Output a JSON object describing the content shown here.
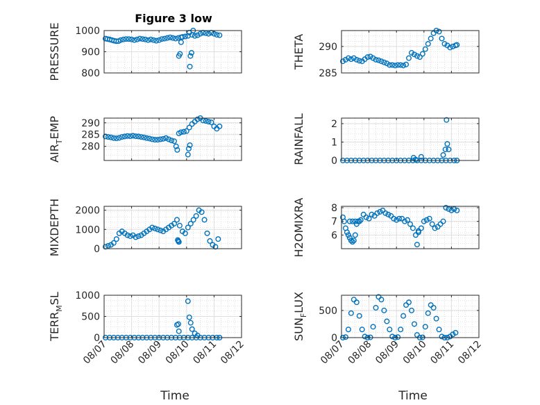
{
  "chart_data": {
    "type": "scatter",
    "title": "Figure 3 low",
    "marker": "open-circle",
    "marker_color": "#0072BD",
    "grid": "major and minor, dotted",
    "x_axis": {
      "label": "Time",
      "range": [
        "08/07",
        "08/12"
      ],
      "tick_labels": [
        "08/07",
        "08/08",
        "08/09",
        "08/10",
        "08/11",
        "08/12"
      ]
    },
    "panels": [
      {
        "id": "pressure",
        "ylabel": "PRESSURE",
        "ylim": [
          800,
          1000
        ],
        "yticks": [
          "800",
          "900",
          "1000"
        ],
        "x": [
          0.05,
          0.12,
          0.2,
          0.28,
          0.36,
          0.44,
          0.52,
          0.6,
          0.7,
          0.8,
          0.9,
          1.0,
          1.1,
          1.2,
          1.3,
          1.4,
          1.5,
          1.6,
          1.7,
          1.8,
          1.9,
          2.0,
          2.1,
          2.2,
          2.3,
          2.4,
          2.5,
          2.6,
          2.7,
          2.8,
          2.85,
          2.95,
          3.05,
          3.1,
          3.2,
          3.3,
          3.4,
          3.5,
          3.6,
          3.7,
          3.8,
          3.9,
          4.0,
          4.1,
          4.2,
          2.72,
          2.76,
          2.8,
          3.12,
          3.14,
          3.18,
          3.24
        ],
        "y": [
          962,
          960,
          958,
          955,
          952,
          950,
          950,
          955,
          958,
          960,
          960,
          958,
          955,
          958,
          962,
          960,
          958,
          955,
          958,
          955,
          952,
          955,
          960,
          962,
          965,
          968,
          965,
          962,
          965,
          968,
          970,
          972,
          975,
          990,
          980,
          975,
          978,
          985,
          990,
          988,
          985,
          990,
          985,
          980,
          978,
          880,
          890,
          945,
          830,
          880,
          895,
          1000
        ]
      },
      {
        "id": "theta",
        "ylabel": "THETA",
        "ylim": [
          285,
          293
        ],
        "yticks": [
          "285",
          "290"
        ],
        "x": [
          0.05,
          0.15,
          0.25,
          0.35,
          0.45,
          0.55,
          0.65,
          0.75,
          0.85,
          0.95,
          1.05,
          1.15,
          1.25,
          1.35,
          1.45,
          1.55,
          1.65,
          1.75,
          1.85,
          1.95,
          2.05,
          2.15,
          2.25,
          2.35,
          2.45,
          2.55,
          2.65,
          2.75,
          2.85,
          2.95,
          3.05,
          3.15,
          3.25,
          3.35,
          3.45,
          3.55,
          3.65,
          3.75,
          3.85,
          3.95,
          4.05,
          4.15,
          4.2
        ],
        "y": [
          287.2,
          287.5,
          287.8,
          287.6,
          287.8,
          287.5,
          287.3,
          287.2,
          287.6,
          288.0,
          288.1,
          287.8,
          287.5,
          287.4,
          287.2,
          287.0,
          286.8,
          286.5,
          286.5,
          286.4,
          286.5,
          286.5,
          286.4,
          286.6,
          287.8,
          288.8,
          288.5,
          288.2,
          288.0,
          288.6,
          289.5,
          290.5,
          291.5,
          292.5,
          293.0,
          292.8,
          291.5,
          290.5,
          290.2,
          289.8,
          290.0,
          290.2,
          290.3
        ]
      },
      {
        "id": "air_temp",
        "ylabel": "AIR_TEMP",
        "ylim": [
          274,
          292
        ],
        "yticks": [
          "280",
          "285",
          "290"
        ],
        "x": [
          0.05,
          0.15,
          0.25,
          0.35,
          0.45,
          0.55,
          0.65,
          0.75,
          0.85,
          0.95,
          1.05,
          1.15,
          1.25,
          1.35,
          1.45,
          1.55,
          1.65,
          1.75,
          1.85,
          1.95,
          2.05,
          2.15,
          2.25,
          2.35,
          2.45,
          2.55,
          2.62,
          2.66,
          2.72,
          2.8,
          2.9,
          3.0,
          3.1,
          3.2,
          3.3,
          3.4,
          3.5,
          3.6,
          3.7,
          3.8,
          3.9,
          4.0,
          4.1,
          4.2,
          3.05,
          3.08,
          3.12
        ],
        "y": [
          284.2,
          284.0,
          283.8,
          283.5,
          283.4,
          283.6,
          284.0,
          284.2,
          284.4,
          284.3,
          284.5,
          284.3,
          284.2,
          284.0,
          283.8,
          283.5,
          283.3,
          283.0,
          282.8,
          282.8,
          283.0,
          283.2,
          283.5,
          283.0,
          282.5,
          282.2,
          280.0,
          278.5,
          285.5,
          286.0,
          286.2,
          286.5,
          288.0,
          289.5,
          290.5,
          291.5,
          292.0,
          291.0,
          290.8,
          290.5,
          290.2,
          288.5,
          287.5,
          288.5,
          276.5,
          279.0,
          280.5
        ]
      },
      {
        "id": "rainfall",
        "ylabel": "RAINFALL",
        "ylim": [
          0,
          2.3
        ],
        "yticks": [
          "0",
          "1",
          "2"
        ],
        "x": [
          0.05,
          0.2,
          0.35,
          0.5,
          0.65,
          0.8,
          0.95,
          1.1,
          1.25,
          1.4,
          1.55,
          1.7,
          1.85,
          2.0,
          2.15,
          2.3,
          2.45,
          2.6,
          2.75,
          2.9,
          3.05,
          3.2,
          3.35,
          3.5,
          3.65,
          3.8,
          3.95,
          4.1,
          4.2,
          2.62,
          2.7,
          2.9,
          3.7,
          3.78,
          3.85,
          3.9,
          3.82
        ],
        "y": [
          0,
          0,
          0,
          0,
          0,
          0,
          0,
          0,
          0,
          0,
          0,
          0,
          0,
          0,
          0,
          0,
          0,
          0,
          0,
          0,
          0,
          0,
          0,
          0,
          0,
          0,
          0,
          0,
          0,
          0.15,
          0.05,
          0.2,
          0.3,
          0.6,
          0.9,
          0.6,
          2.2
        ]
      },
      {
        "id": "mixdepth",
        "ylabel": "MIXDEPTH",
        "ylim": [
          0,
          2200
        ],
        "yticks": [
          "0",
          "1000",
          "2000"
        ],
        "x": [
          0.05,
          0.15,
          0.25,
          0.35,
          0.45,
          0.55,
          0.65,
          0.75,
          0.85,
          0.95,
          1.05,
          1.15,
          1.25,
          1.35,
          1.45,
          1.55,
          1.65,
          1.75,
          1.85,
          1.95,
          2.05,
          2.15,
          2.25,
          2.35,
          2.45,
          2.55,
          2.65,
          2.75,
          2.85,
          2.95,
          3.05,
          3.15,
          3.25,
          3.35,
          3.45,
          3.55,
          3.65,
          3.75,
          3.85,
          3.95,
          4.05,
          4.15,
          2.7,
          2.72,
          2.68
        ],
        "y": [
          100,
          150,
          200,
          300,
          500,
          800,
          900,
          800,
          700,
          650,
          700,
          600,
          650,
          700,
          800,
          900,
          1000,
          1100,
          1050,
          1000,
          950,
          900,
          1000,
          1100,
          1200,
          1300,
          1500,
          1200,
          900,
          800,
          1100,
          1300,
          1500,
          1700,
          2000,
          1900,
          1500,
          800,
          400,
          200,
          100,
          500,
          400,
          350,
          450
        ]
      },
      {
        "id": "h2omixra",
        "ylabel": "H2OMIXRA",
        "ylim": [
          5,
          8.1
        ],
        "yticks": [
          "6",
          "7",
          "8"
        ],
        "x": [
          0.05,
          0.1,
          0.15,
          0.2,
          0.25,
          0.3,
          0.35,
          0.4,
          0.45,
          0.5,
          0.55,
          0.6,
          0.65,
          0.7,
          0.8,
          0.9,
          1.0,
          1.1,
          1.2,
          1.3,
          1.4,
          1.5,
          1.6,
          1.7,
          1.8,
          1.9,
          2.0,
          2.1,
          2.2,
          2.3,
          2.4,
          2.5,
          2.6,
          2.7,
          2.8,
          2.9,
          3.0,
          3.1,
          3.2,
          3.3,
          3.4,
          3.5,
          3.6,
          3.7,
          3.8,
          3.9,
          4.0,
          4.1,
          4.2,
          0.3,
          0.4,
          0.5,
          2.75,
          2.8
        ],
        "y": [
          7.3,
          7.0,
          6.5,
          6.2,
          6.0,
          5.8,
          5.6,
          5.5,
          5.6,
          6.0,
          6.8,
          7.0,
          7.0,
          7.1,
          7.5,
          7.3,
          7.2,
          7.5,
          7.4,
          7.6,
          7.7,
          7.8,
          7.6,
          7.5,
          7.4,
          7.2,
          7.1,
          7.2,
          7.2,
          7.0,
          7.1,
          6.8,
          6.5,
          6.0,
          6.2,
          6.5,
          7.0,
          7.1,
          7.2,
          6.8,
          6.5,
          6.6,
          6.8,
          7.0,
          8.0,
          7.9,
          7.8,
          7.9,
          7.8,
          7.0,
          7.0,
          7.0,
          5.3,
          6.3
        ]
      },
      {
        "id": "terr_msl",
        "ylabel": "TERR_MSL",
        "ylim": [
          0,
          1000
        ],
        "yticks": [
          "0",
          "500",
          "1000"
        ],
        "x": [
          0.05,
          0.2,
          0.35,
          0.5,
          0.65,
          0.8,
          0.95,
          1.1,
          1.25,
          1.4,
          1.55,
          1.7,
          1.85,
          2.0,
          2.15,
          2.3,
          2.45,
          2.6,
          2.75,
          2.9,
          3.05,
          3.2,
          3.35,
          3.5,
          3.65,
          3.8,
          3.95,
          4.1,
          4.2,
          2.65,
          2.7,
          2.72,
          3.05,
          3.1,
          3.15,
          3.2,
          3.3,
          3.4
        ],
        "y": [
          0,
          0,
          0,
          0,
          0,
          0,
          0,
          0,
          0,
          0,
          0,
          0,
          0,
          0,
          0,
          0,
          0,
          0,
          0,
          0,
          0,
          0,
          0,
          0,
          0,
          0,
          0,
          0,
          0,
          300,
          320,
          150,
          860,
          480,
          350,
          200,
          100,
          50
        ]
      },
      {
        "id": "sun_flux",
        "ylabel": "SUN_FLUX",
        "ylim": [
          0,
          780
        ],
        "yticks": [
          "0",
          "500"
        ],
        "x": [
          0.05,
          0.15,
          0.25,
          0.35,
          0.45,
          0.55,
          0.65,
          0.75,
          0.85,
          0.95,
          1.05,
          1.15,
          1.25,
          1.35,
          1.45,
          1.55,
          1.65,
          1.75,
          1.85,
          1.95,
          2.05,
          2.15,
          2.25,
          2.35,
          2.45,
          2.55,
          2.65,
          2.75,
          2.85,
          2.95,
          3.05,
          3.15,
          3.25,
          3.35,
          3.45,
          3.55,
          3.65,
          3.75,
          3.85,
          3.95,
          4.05,
          4.15
        ],
        "y": [
          0,
          10,
          150,
          450,
          700,
          650,
          400,
          150,
          20,
          0,
          5,
          200,
          550,
          750,
          700,
          500,
          300,
          150,
          20,
          0,
          10,
          150,
          400,
          600,
          650,
          500,
          250,
          50,
          0,
          5,
          200,
          450,
          600,
          550,
          350,
          150,
          20,
          0,
          0,
          20,
          60,
          90
        ]
      }
    ]
  }
}
